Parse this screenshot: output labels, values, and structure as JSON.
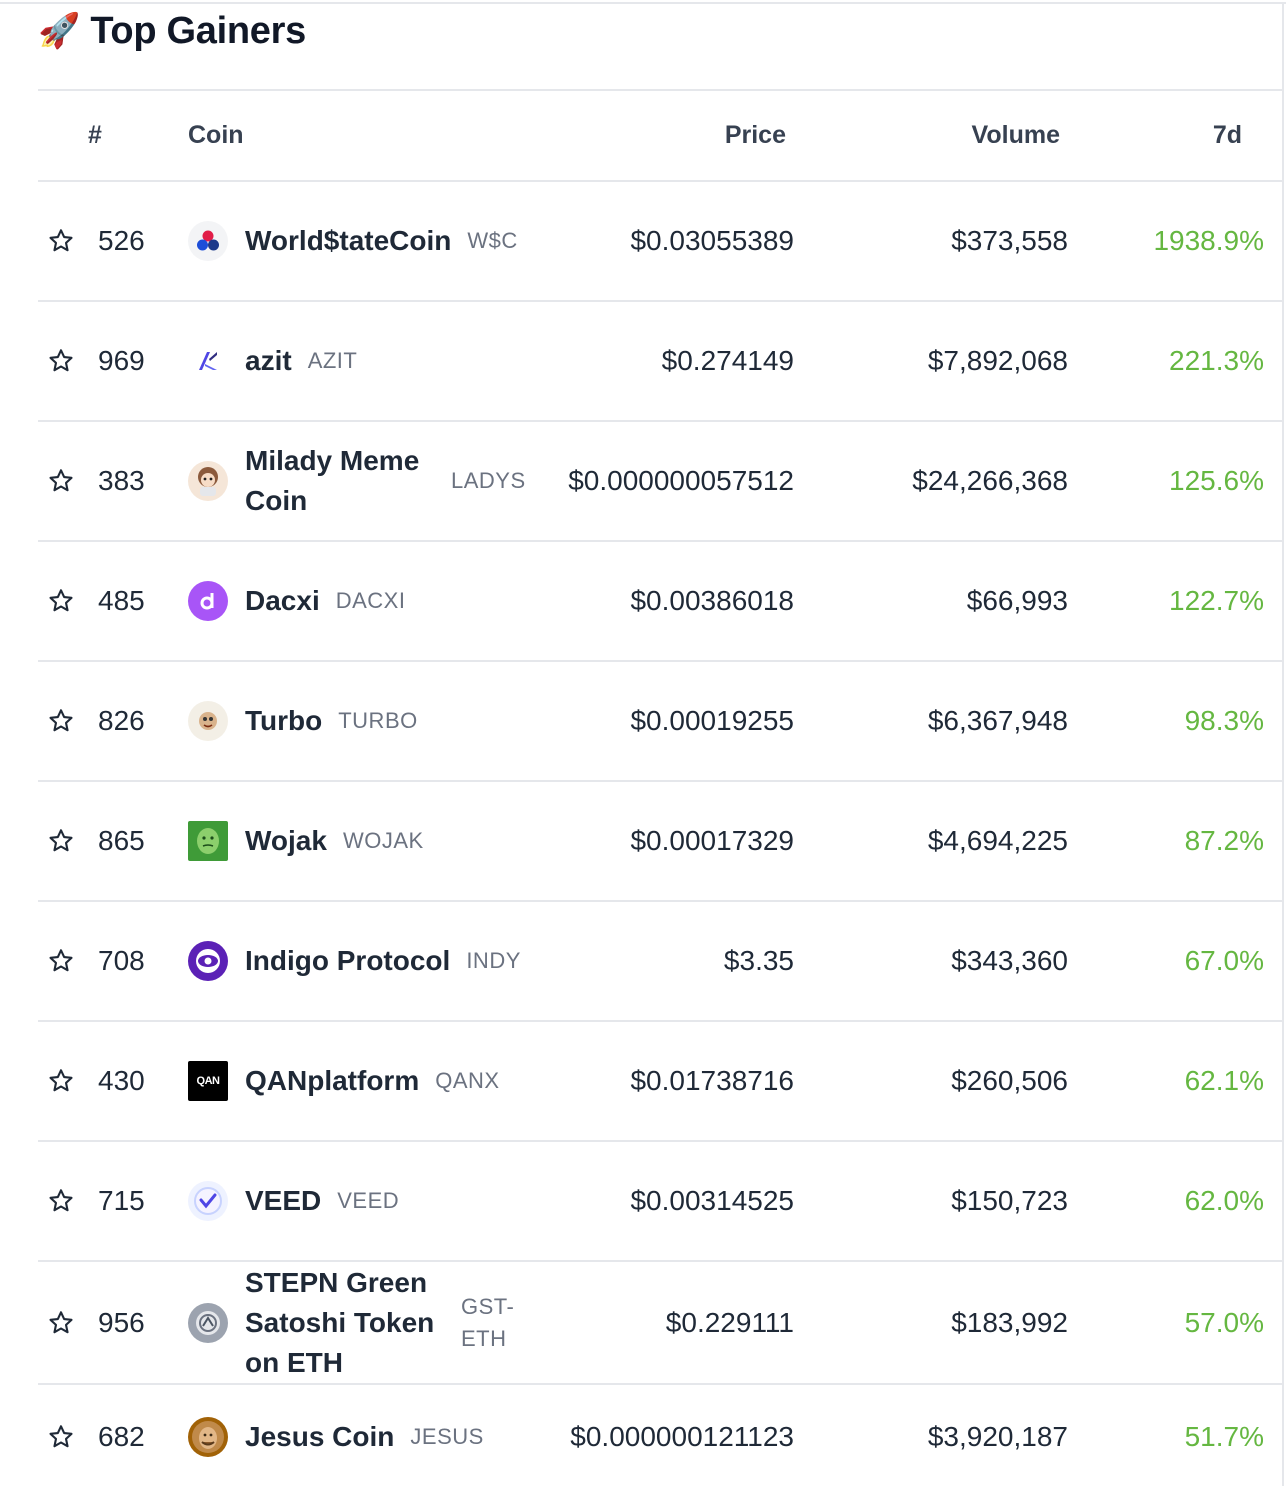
{
  "header": {
    "icon": "rocket-icon",
    "icon_glyph": "🚀",
    "title": "Top Gainers"
  },
  "columns": {
    "rank": "#",
    "coin": "Coin",
    "price": "Price",
    "volume": "Volume",
    "change": "7d"
  },
  "colors": {
    "positive": "#65b741",
    "text": "#1f2937",
    "muted": "#6b7280",
    "border": "#e5e7eb"
  },
  "rows": [
    {
      "rank": "526",
      "name": "World$tateCoin",
      "symbol": "W$C",
      "price": "$0.03055389",
      "volume": "$373,558",
      "change": "1938.9%"
    },
    {
      "rank": "969",
      "name": "azit",
      "symbol": "AZIT",
      "price": "$0.274149",
      "volume": "$7,892,068",
      "change": "221.3%"
    },
    {
      "rank": "383",
      "name": "Milady Meme Coin",
      "symbol": "LADYS",
      "price": "$0.000000057512",
      "volume": "$24,266,368",
      "change": "125.6%"
    },
    {
      "rank": "485",
      "name": "Dacxi",
      "symbol": "DACXI",
      "price": "$0.00386018",
      "volume": "$66,993",
      "change": "122.7%"
    },
    {
      "rank": "826",
      "name": "Turbo",
      "symbol": "TURBO",
      "price": "$0.00019255",
      "volume": "$6,367,948",
      "change": "98.3%"
    },
    {
      "rank": "865",
      "name": "Wojak",
      "symbol": "WOJAK",
      "price": "$0.00017329",
      "volume": "$4,694,225",
      "change": "87.2%"
    },
    {
      "rank": "708",
      "name": "Indigo Protocol",
      "symbol": "INDY",
      "price": "$3.35",
      "volume": "$343,360",
      "change": "67.0%"
    },
    {
      "rank": "430",
      "name": "QANplatform",
      "symbol": "QANX",
      "price": "$0.01738716",
      "volume": "$260,506",
      "change": "62.1%"
    },
    {
      "rank": "715",
      "name": "VEED",
      "symbol": "VEED",
      "price": "$0.00314525",
      "volume": "$150,723",
      "change": "62.0%"
    },
    {
      "rank": "956",
      "name": "STEPN Green Satoshi Token on ETH",
      "symbol": "GST-ETH",
      "price": "$0.229111",
      "volume": "$183,992",
      "change": "57.0%"
    },
    {
      "rank": "682",
      "name": "Jesus Coin",
      "symbol": "JESUS",
      "price": "$0.000000121123",
      "volume": "$3,920,187",
      "change": "51.7%"
    }
  ]
}
